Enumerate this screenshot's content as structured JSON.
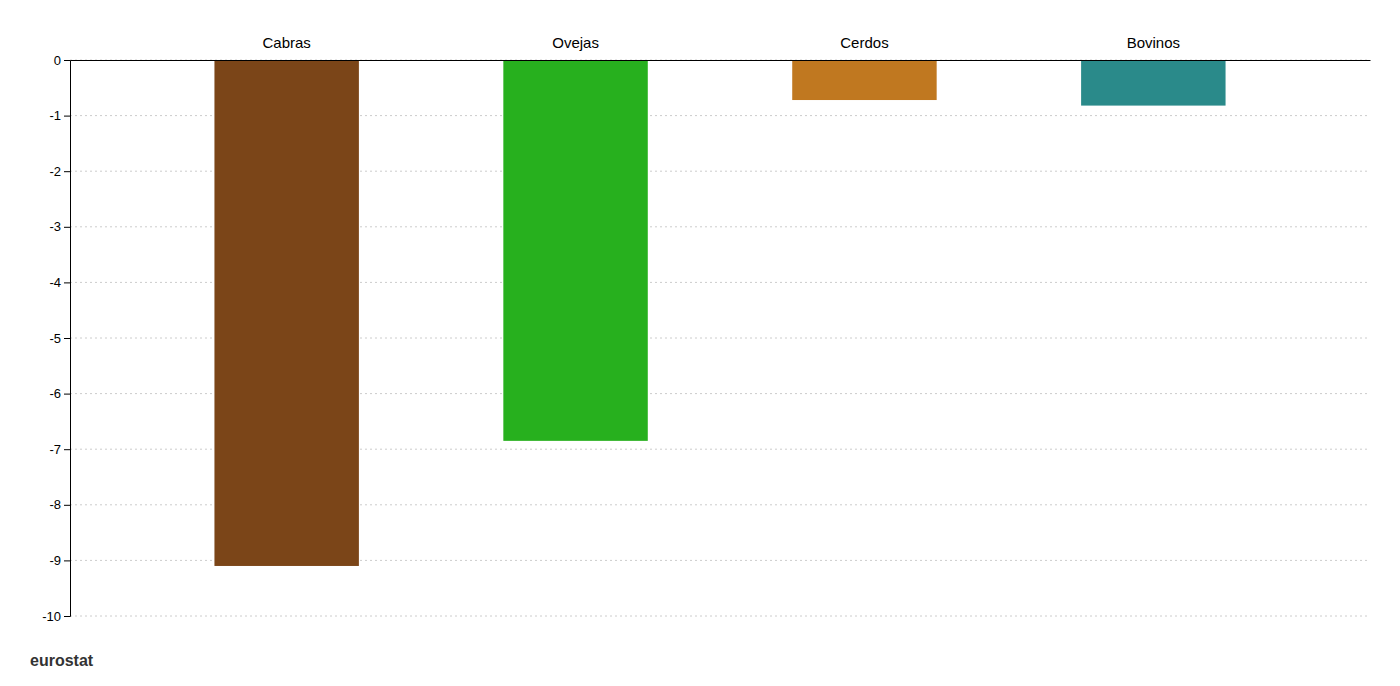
{
  "chart_data": {
    "type": "bar",
    "categories": [
      "Cabras",
      "Ovejas",
      "Cerdos",
      "Bovinos"
    ],
    "values": [
      -9.1,
      -6.85,
      -0.72,
      -0.82
    ],
    "colors": [
      "#7B4518",
      "#27B01E",
      "#C07820",
      "#2A8A8A"
    ],
    "ylim": [
      -10,
      0
    ],
    "yticks": [
      0,
      -1,
      -2,
      -3,
      -4,
      -5,
      -6,
      -7,
      -8,
      -9,
      -10
    ],
    "grid": true,
    "annotations": [
      "eurostat"
    ]
  }
}
